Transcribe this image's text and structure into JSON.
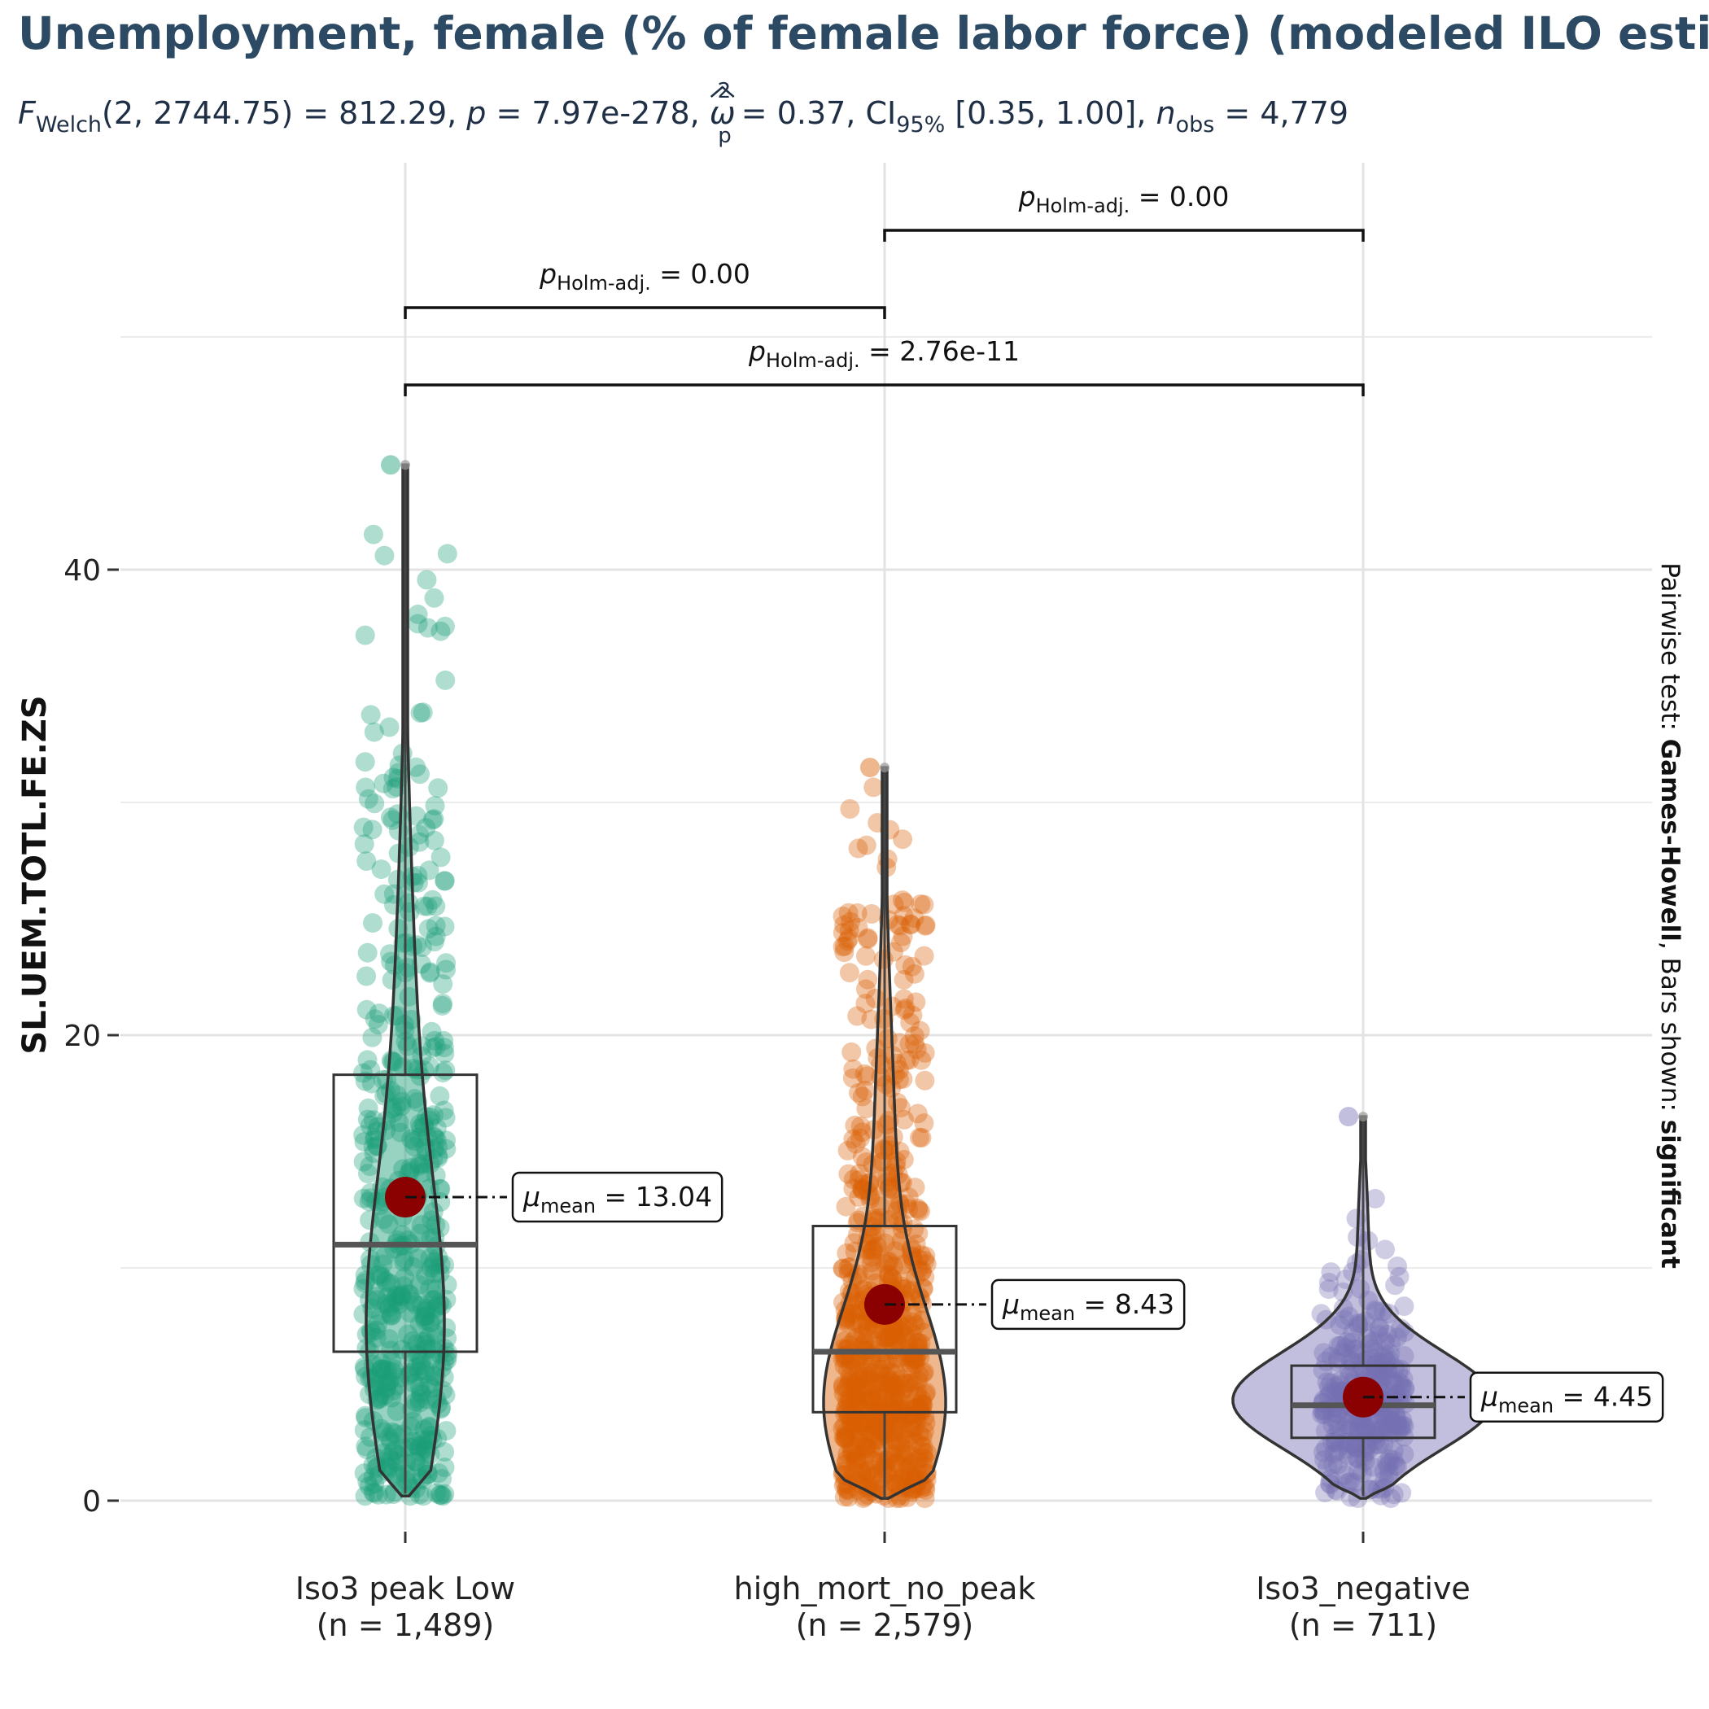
{
  "title": "Unemployment, female (% of female labor force) (modeled ILO estimate)",
  "subtitle": {
    "stat_sym": "F",
    "stat_sub": "Welch",
    "df": "(2, 2744.75) = 812.29, ",
    "p_sym": "p",
    "p_val": " = 7.97e-278, ",
    "es_sym": "ω",
    "es_sup": "2",
    "es_sub": "p",
    "es_val": " = 0.37, CI",
    "ci_sub": "95%",
    "ci_val": " [0.35, 1.00], ",
    "n_sym": "n",
    "n_sub": "obs",
    "n_val": " = 4,779"
  },
  "caption": {
    "prefix": "Pairwise test: ",
    "test": "Games-Howell",
    "mid": ", Bars shown: ",
    "bars": "significant"
  },
  "chart_data": {
    "type": "violin-box-scatter",
    "title": "Unemployment, female (% of female labor force) (modeled ILO estimate)",
    "ylabel": "SL.UEM.TOTL.FE.ZS",
    "xlabel": "",
    "ylim": [
      -3,
      58
    ],
    "yticks": [
      0,
      20,
      40
    ],
    "grid": true,
    "mean_label_prefix": "μ",
    "mean_label_sub": "mean",
    "groups": [
      {
        "label": "Iso3 peak  Low",
        "n_label": "(n = 1,489)",
        "color": "#1b9e77",
        "mean": 13.04,
        "mean_label": " = 13.04",
        "median": 11.0,
        "q1": 6.4,
        "q3": 18.3,
        "whisker_low": 0.3,
        "whisker_high": 44.5,
        "min": 0.2,
        "max": 44.5
      },
      {
        "label": "high_mort_no_peak",
        "n_label": "(n = 2,579)",
        "color": "#d95f02",
        "mean": 8.43,
        "mean_label": " = 8.43",
        "median": 6.4,
        "q1": 3.8,
        "q3": 11.8,
        "whisker_low": 0.1,
        "whisker_high": 31.5,
        "min": 0.1,
        "max": 31.5
      },
      {
        "label": "Iso3_negative",
        "n_label": "(n = 711)",
        "color": "#7570b3",
        "mean": 4.45,
        "mean_label": " = 4.45",
        "median": 4.1,
        "q1": 2.7,
        "q3": 5.8,
        "whisker_low": 0.2,
        "whisker_high": 16.5,
        "min": 0.1,
        "max": 16.5
      }
    ],
    "comparisons": [
      {
        "from": 0,
        "to": 1,
        "label_sym": "p",
        "label_sub": "Holm-adj.",
        "label_val": " = 0.00"
      },
      {
        "from": 1,
        "to": 2,
        "label_sym": "p",
        "label_sub": "Holm-adj.",
        "label_val": " = 0.00"
      },
      {
        "from": 0,
        "to": 2,
        "label_sym": "p",
        "label_sub": "Holm-adj.",
        "label_val": " = 2.76e-11"
      }
    ]
  }
}
